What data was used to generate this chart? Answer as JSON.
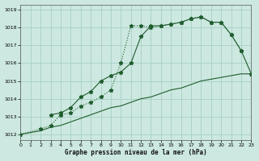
{
  "title": "Graphe pression niveau de la mer (hPa)",
  "bg_color": "#cce8e0",
  "line_color": "#1f5c2e",
  "grid_color": "#a8cfc4",
  "ylabel_values": [
    1012,
    1013,
    1014,
    1015,
    1016,
    1017,
    1018,
    1019
  ],
  "x_ticks": [
    0,
    1,
    2,
    3,
    4,
    5,
    6,
    7,
    8,
    9,
    10,
    11,
    12,
    13,
    14,
    15,
    16,
    17,
    18,
    19,
    20,
    21,
    22,
    23
  ],
  "xlim": [
    0,
    23
  ],
  "ylim": [
    1011.7,
    1019.3
  ],
  "line1_x": [
    0,
    1,
    2,
    3,
    4,
    5,
    6,
    7,
    8,
    9,
    10,
    11,
    12,
    13,
    14,
    15,
    16,
    17,
    18,
    19,
    20,
    21,
    22,
    23
  ],
  "line1_y": [
    1012.0,
    1012.1,
    1012.2,
    1012.4,
    1012.5,
    1012.7,
    1012.9,
    1013.1,
    1013.3,
    1013.5,
    1013.6,
    1013.8,
    1014.0,
    1014.1,
    1014.3,
    1014.5,
    1014.6,
    1014.8,
    1015.0,
    1015.1,
    1015.2,
    1015.3,
    1015.4,
    1015.4
  ],
  "line2_x": [
    0,
    2,
    3,
    4,
    5,
    6,
    7,
    8,
    9,
    10,
    11,
    12,
    13,
    14,
    15,
    16,
    17,
    18,
    19,
    20,
    21,
    22
  ],
  "line2_y": [
    1012.0,
    1012.3,
    1012.5,
    1013.1,
    1013.2,
    1013.6,
    1013.8,
    1014.1,
    1014.5,
    1016.0,
    1018.1,
    1018.1,
    1018.0,
    1018.1,
    1018.2,
    1018.3,
    1018.5,
    1018.6,
    1018.3,
    1018.3,
    1017.6,
    1016.7
  ],
  "line3_x": [
    3,
    4,
    5,
    6,
    7,
    8,
    9,
    10,
    11,
    12,
    13,
    14,
    15,
    16,
    17,
    18,
    19,
    20,
    21,
    22,
    23
  ],
  "line3_y": [
    1013.1,
    1013.2,
    1013.5,
    1014.1,
    1014.4,
    1015.0,
    1015.3,
    1015.5,
    1016.0,
    1017.5,
    1018.1,
    1018.1,
    1018.2,
    1018.3,
    1018.5,
    1018.6,
    1018.3,
    1018.3,
    1017.6,
    1016.7,
    1015.4
  ]
}
